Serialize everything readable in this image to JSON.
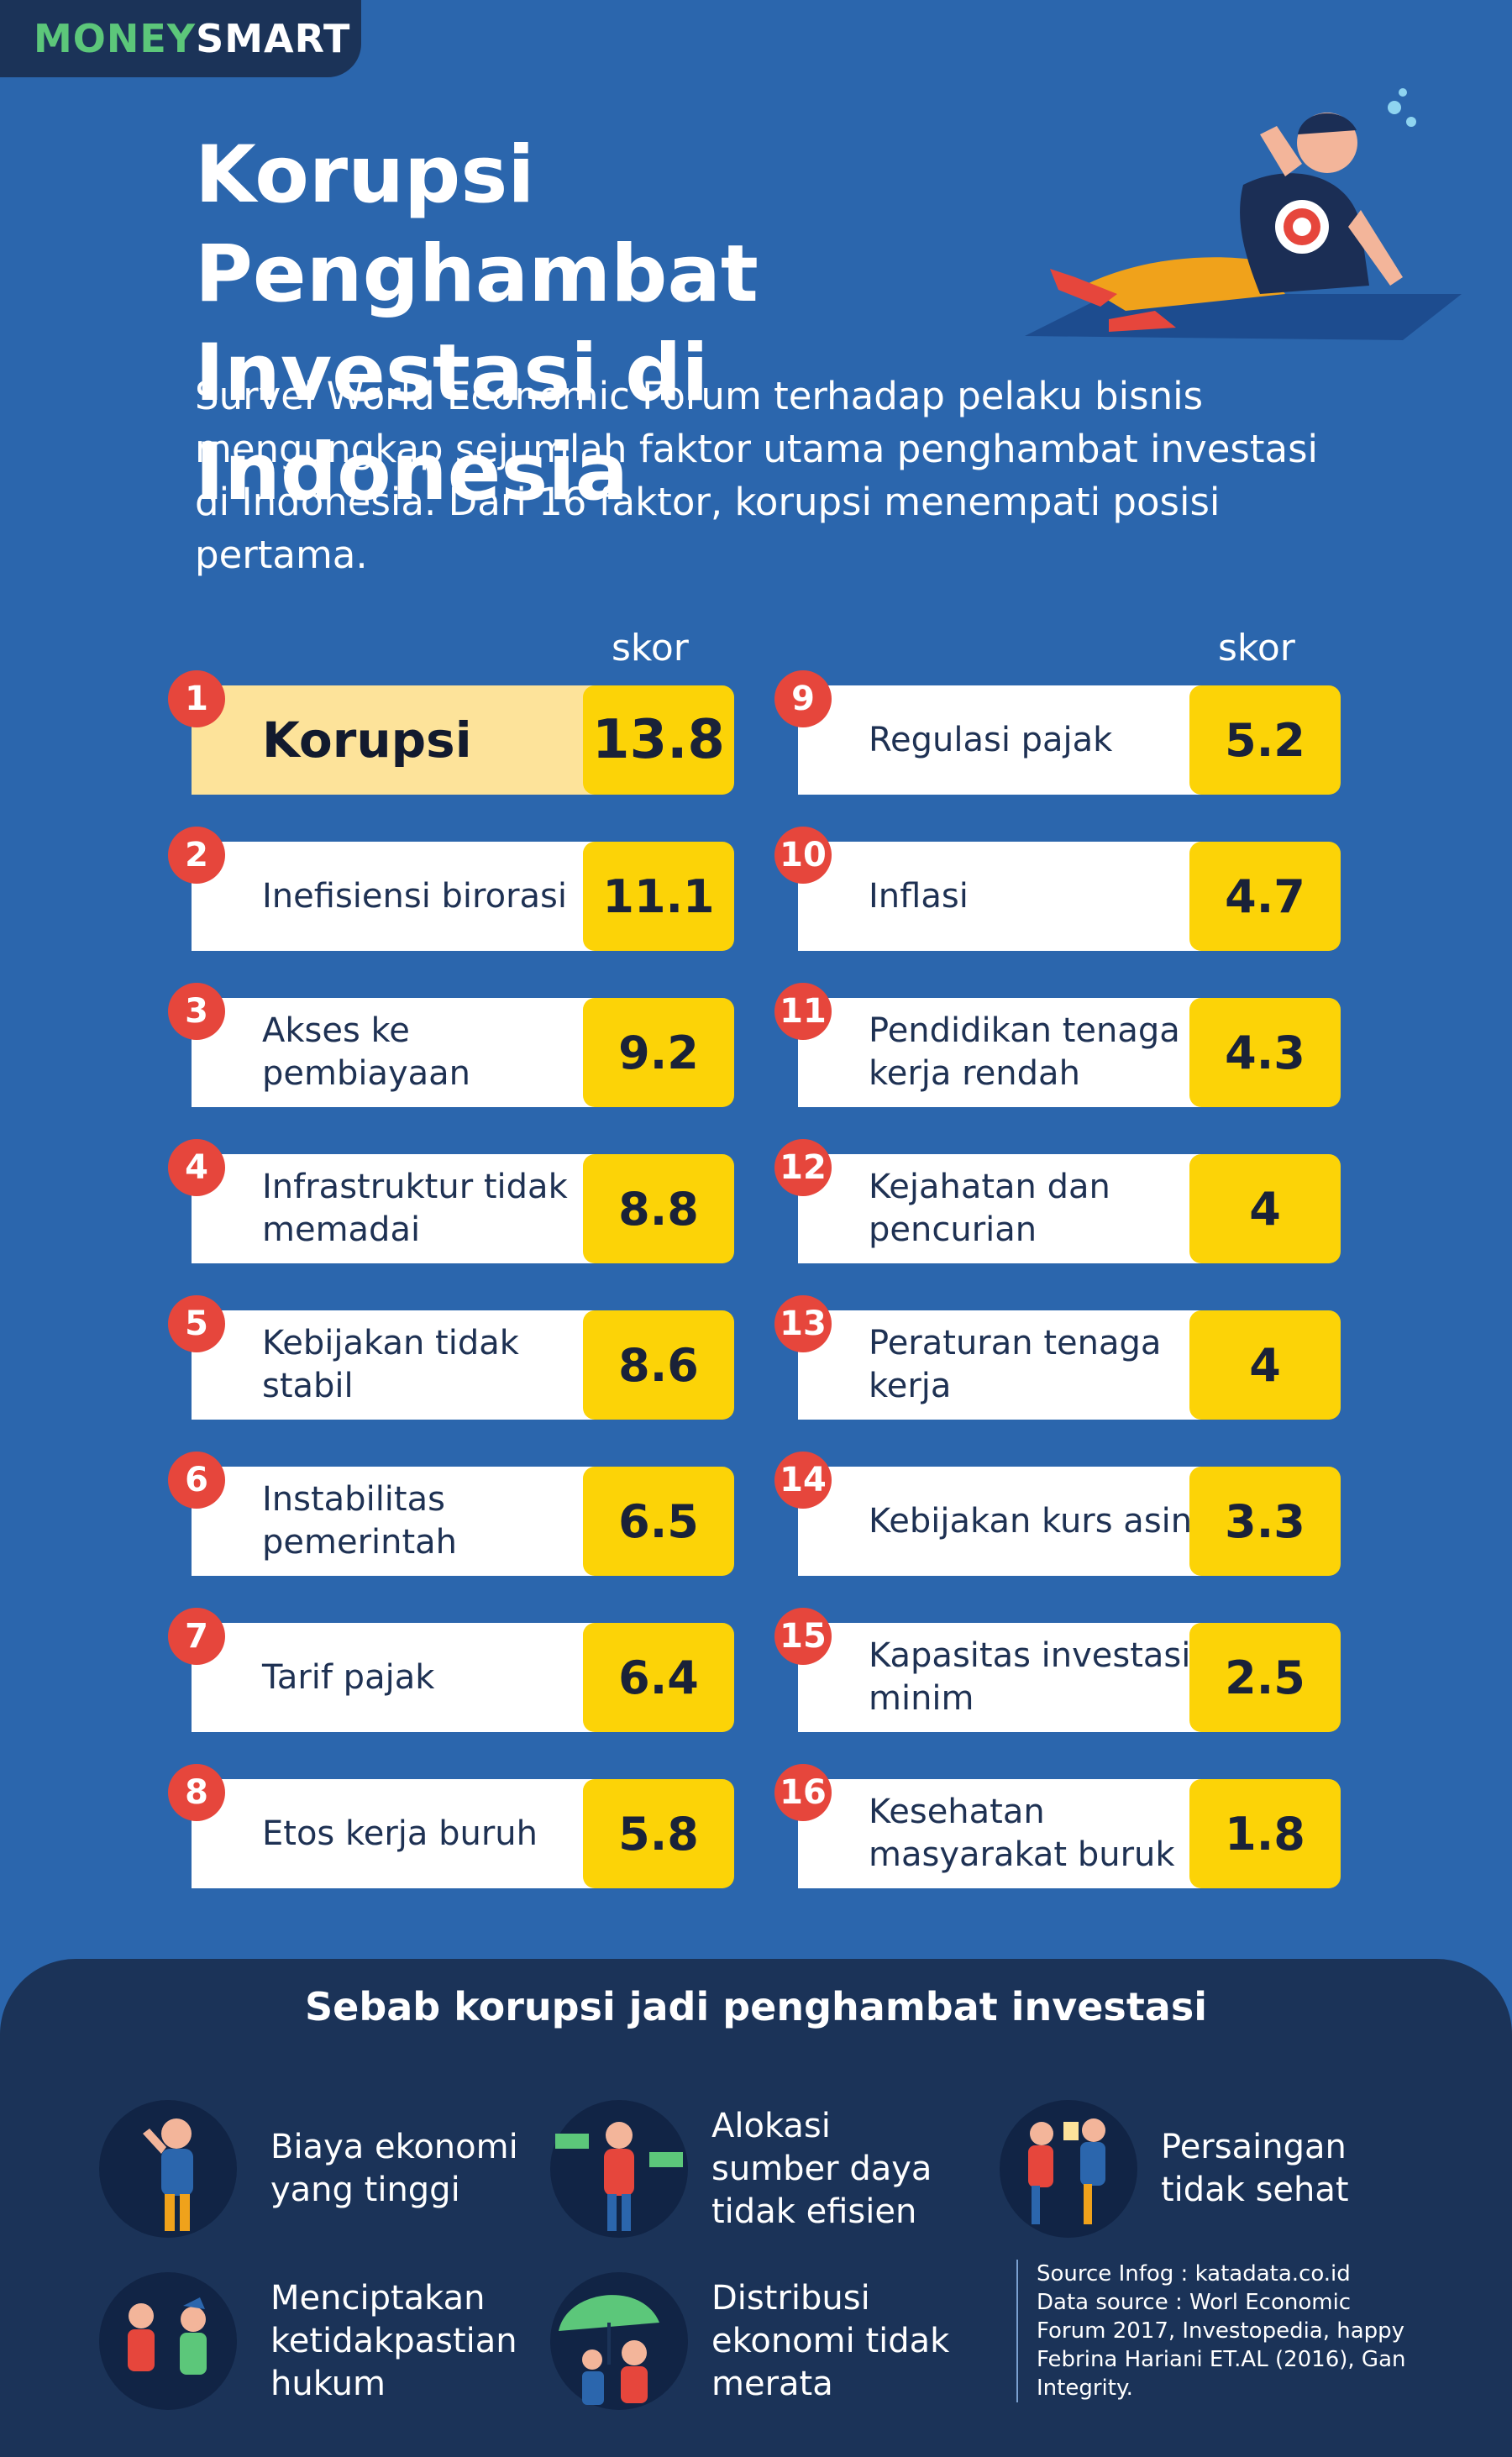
{
  "brand": {
    "part1": "MONEY",
    "part2": "SMART"
  },
  "title_line1": "Korupsi Penghambat",
  "title_line2": "Investasi di Indonesia",
  "intro": "Survei World Economic Forum terhadap pelaku bisnis mengungkap sejumlah faktor utama penghambat investasi di Indonesia. Dari 16 faktor, korupsi menempati posisi pertama.",
  "skor_label": "skor",
  "left_factors": [
    {
      "rank": "1",
      "label": "Korupsi",
      "score": "13.8"
    },
    {
      "rank": "2",
      "label": "Inefisiensi birorasi",
      "score": "11.1"
    },
    {
      "rank": "3",
      "label": "Akses ke pembiayaan",
      "score": "9.2"
    },
    {
      "rank": "4",
      "label": "Infrastruktur tidak memadai",
      "score": "8.8"
    },
    {
      "rank": "5",
      "label": "Kebijakan tidak stabil",
      "score": "8.6"
    },
    {
      "rank": "6",
      "label": "Instabilitas pemerintah",
      "score": "6.5"
    },
    {
      "rank": "7",
      "label": "Tarif pajak",
      "score": "6.4"
    },
    {
      "rank": "8",
      "label": "Etos kerja buruh",
      "score": "5.8"
    }
  ],
  "right_factors": [
    {
      "rank": "9",
      "label": "Regulasi pajak",
      "score": "5.2"
    },
    {
      "rank": "10",
      "label": "Inflasi",
      "score": "4.7"
    },
    {
      "rank": "11",
      "label": "Pendidikan tenaga kerja rendah",
      "score": "4.3"
    },
    {
      "rank": "12",
      "label": "Kejahatan dan pencurian",
      "score": "4"
    },
    {
      "rank": "13",
      "label": "Peraturan tenaga kerja",
      "score": "4"
    },
    {
      "rank": "14",
      "label": "Kebijakan kurs asing",
      "score": "3.3"
    },
    {
      "rank": "15",
      "label": "Kapasitas investasi minim",
      "score": "2.5"
    },
    {
      "rank": "16",
      "label": "Kesehatan masyarakat buruk",
      "score": "1.8"
    }
  ],
  "causes_title": "Sebab korupsi jadi penghambat investasi",
  "causes": [
    "Biaya ekonomi yang tinggi",
    "Alokasi sumber daya tidak efisien",
    "Persaingan tidak sehat",
    "Menciptakan ketidakpastian hukum",
    "Distribusi ekonomi tidak merata"
  ],
  "source": {
    "line1": "Source Infog : katadata.co.id",
    "line2": "Data source : Worl Economic Forum 2017, Investopedia, happy Febrina Hariani ET.AL (2016), Gan Integrity."
  },
  "colors": {
    "background": "#2b66ad",
    "navy": "#1b3358",
    "yellow": "#fcd307",
    "highlight": "#fde39a",
    "red": "#e6463c",
    "green": "#5cc77a"
  }
}
